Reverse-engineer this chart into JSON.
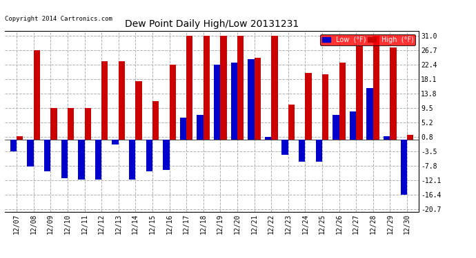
{
  "title": "Dew Point Daily High/Low 20131231",
  "copyright": "Copyright 2014 Cartronics.com",
  "dates": [
    "12/07",
    "12/08",
    "12/09",
    "12/10",
    "12/11",
    "12/12",
    "12/13",
    "12/14",
    "12/15",
    "12/16",
    "12/17",
    "12/18",
    "12/19",
    "12/20",
    "12/21",
    "12/22",
    "12/23",
    "12/24",
    "12/25",
    "12/26",
    "12/27",
    "12/28",
    "12/29",
    "12/30"
  ],
  "high": [
    1.0,
    26.7,
    9.5,
    9.5,
    9.5,
    23.5,
    23.5,
    17.5,
    11.5,
    22.4,
    31.0,
    31.0,
    31.0,
    31.0,
    24.5,
    31.0,
    10.5,
    20.0,
    19.5,
    23.0,
    28.0,
    31.0,
    27.5,
    1.5
  ],
  "low": [
    -3.5,
    -8.0,
    -9.5,
    -11.5,
    -12.0,
    -12.0,
    -1.5,
    -12.0,
    -9.5,
    -9.0,
    6.5,
    7.5,
    22.5,
    23.0,
    24.0,
    0.8,
    -4.5,
    -6.5,
    -6.5,
    7.5,
    8.5,
    15.5,
    1.0,
    -16.5
  ],
  "high_color": "#cc0000",
  "low_color": "#0000cc",
  "bg_color": "#ffffff",
  "grid_color": "#b0b0b0",
  "yticks": [
    -20.7,
    -16.4,
    -12.1,
    -7.8,
    -3.5,
    0.8,
    5.2,
    9.5,
    13.8,
    18.1,
    22.4,
    26.7,
    31.0
  ],
  "ylim": [
    -21.5,
    32.5
  ],
  "bar_width": 0.38,
  "legend_labels": [
    "Low  (°F)",
    "High  (°F)"
  ]
}
